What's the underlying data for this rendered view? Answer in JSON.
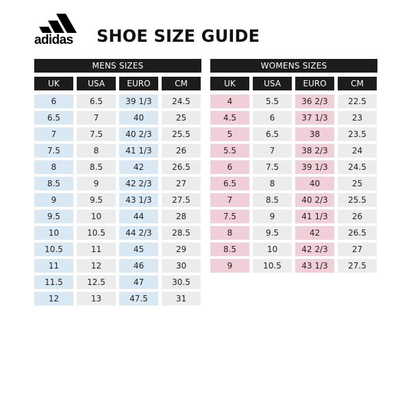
{
  "brand": {
    "logo_text": "adidas"
  },
  "page_title": "SHOE SIZE GUIDE",
  "colors": {
    "header_bg": "#1c1c1c",
    "mens_accent": "#d9e9f4",
    "womens_accent": "#f1cfd9",
    "neutral": "#ececec"
  },
  "mens": {
    "title": "MENS SIZES",
    "columns": [
      "UK",
      "USA",
      "EURO",
      "CM"
    ],
    "rows": [
      [
        "6",
        "6.5",
        "39 1/3",
        "24.5"
      ],
      [
        "6.5",
        "7",
        "40",
        "25"
      ],
      [
        "7",
        "7.5",
        "40 2/3",
        "25.5"
      ],
      [
        "7.5",
        "8",
        "41 1/3",
        "26"
      ],
      [
        "8",
        "8.5",
        "42",
        "26.5"
      ],
      [
        "8.5",
        "9",
        "42 2/3",
        "27"
      ],
      [
        "9",
        "9.5",
        "43 1/3",
        "27.5"
      ],
      [
        "9.5",
        "10",
        "44",
        "28"
      ],
      [
        "10",
        "10.5",
        "44 2/3",
        "28.5"
      ],
      [
        "10.5",
        "11",
        "45",
        "29"
      ],
      [
        "11",
        "12",
        "46",
        "30"
      ],
      [
        "11.5",
        "12.5",
        "47",
        "30.5"
      ],
      [
        "12",
        "13",
        "47.5",
        "31"
      ]
    ]
  },
  "womens": {
    "title": "WOMENS SIZES",
    "columns": [
      "UK",
      "USA",
      "EURO",
      "CM"
    ],
    "rows": [
      [
        "4",
        "5.5",
        "36 2/3",
        "22.5"
      ],
      [
        "4.5",
        "6",
        "37 1/3",
        "23"
      ],
      [
        "5",
        "6.5",
        "38",
        "23.5"
      ],
      [
        "5.5",
        "7",
        "38 2/3",
        "24"
      ],
      [
        "6",
        "7.5",
        "39 1/3",
        "24.5"
      ],
      [
        "6.5",
        "8",
        "40",
        "25"
      ],
      [
        "7",
        "8.5",
        "40 2/3",
        "25.5"
      ],
      [
        "7.5",
        "9",
        "41 1/3",
        "26"
      ],
      [
        "8",
        "9.5",
        "42",
        "26.5"
      ],
      [
        "8.5",
        "10",
        "42 2/3",
        "27"
      ],
      [
        "9",
        "10.5",
        "43 1/3",
        "27.5"
      ]
    ]
  }
}
